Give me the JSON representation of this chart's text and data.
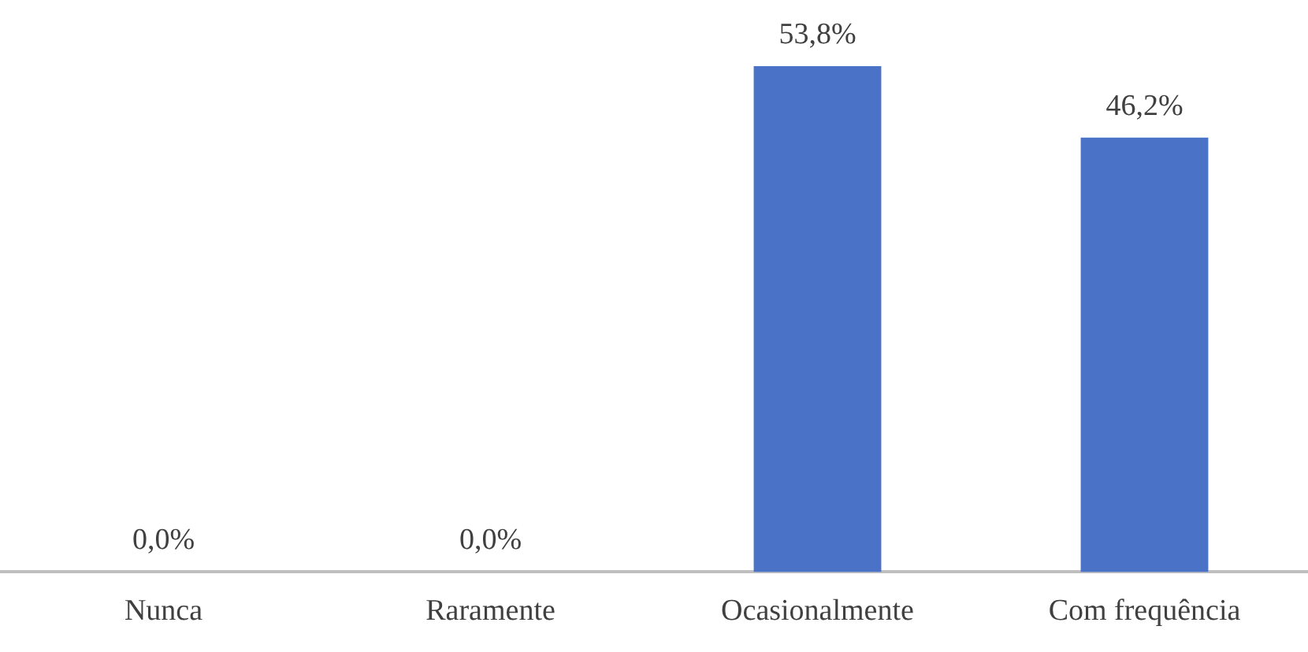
{
  "chart_data": {
    "type": "bar",
    "categories": [
      "Nunca",
      "Raramente",
      "Ocasionalmente",
      "Com frequência"
    ],
    "values": [
      0,
      0,
      53.8,
      46.2
    ],
    "value_labels": [
      "0,0%",
      "0,0%",
      "53,8%",
      "46,2%"
    ],
    "color": "#4a72c6",
    "grid": false,
    "legend": false,
    "tick_labels": "x"
  }
}
